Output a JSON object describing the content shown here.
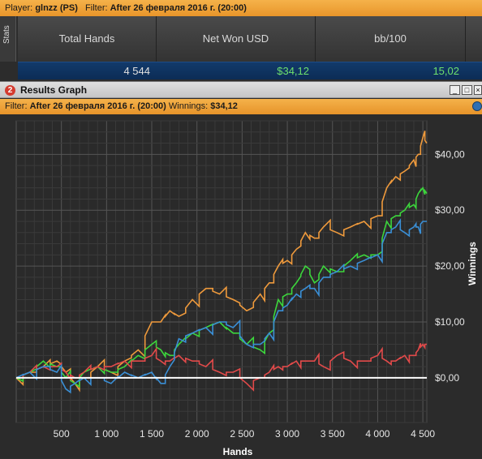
{
  "topbar": {
    "player_label": "Player:",
    "player": "glnzz (PS)",
    "filter_label": "Filter:",
    "filter": "After 26 февраля 2016 г. (20:00)"
  },
  "stats": {
    "tab_label": "Stats",
    "headers": [
      "Total Hands",
      "Net Won USD",
      "bb/100"
    ],
    "values": [
      "4 544",
      "$34,12",
      "15,02"
    ],
    "colors": [
      "#e0e0e0",
      "#6ee06e",
      "#6ee06e"
    ]
  },
  "window": {
    "badge": "2",
    "title": "Results Graph",
    "buttons": [
      "_",
      "□",
      "×"
    ],
    "filter_label": "Filter:",
    "filter_value": "After 26 февраля 2016 г. (20:00)",
    "winnings_label": "Winnings:",
    "winnings_value": "$34,12"
  },
  "chart_data": {
    "type": "line",
    "xlabel": "Hands",
    "ylabel": "Winnings",
    "xlim": [
      0,
      4544
    ],
    "ylim": [
      -8,
      46
    ],
    "x_ticks": [
      500,
      1000,
      1500,
      2000,
      2500,
      3000,
      3500,
      4000,
      4500
    ],
    "x_tick_labels": [
      "500",
      "1 000",
      "1 500",
      "2 000",
      "2 500",
      "3 000",
      "3 500",
      "4 000",
      "4 500"
    ],
    "y_ticks": [
      0,
      10,
      20,
      30,
      40
    ],
    "y_tick_labels": [
      "$0,00",
      "$10,00",
      "$20,00",
      "$30,00",
      "$40,00"
    ],
    "grid": true,
    "series": [
      {
        "color": "#ef9a3c",
        "x": [
          0,
          150,
          300,
          450,
          550,
          650,
          750,
          900,
          1050,
          1200,
          1350,
          1500,
          1600,
          1700,
          1800,
          1950,
          2100,
          2250,
          2400,
          2550,
          2700,
          2800,
          2900,
          3000,
          3100,
          3200,
          3300,
          3400,
          3550,
          3700,
          3850,
          4000,
          4100,
          4200,
          4300,
          4400,
          4450,
          4500,
          4544
        ],
        "y": [
          0,
          1,
          2,
          3,
          1,
          -1,
          0,
          2,
          1,
          3,
          5,
          10,
          10,
          12,
          11,
          14,
          16,
          15,
          14,
          12,
          15,
          17,
          20,
          21,
          23,
          26,
          25,
          27,
          26,
          27,
          28,
          29,
          34,
          36,
          37,
          39,
          40,
          43,
          42
        ]
      },
      {
        "color": "#3cd63c",
        "x": [
          0,
          150,
          300,
          450,
          550,
          650,
          750,
          900,
          1050,
          1200,
          1350,
          1500,
          1600,
          1700,
          1800,
          1950,
          2100,
          2250,
          2400,
          2550,
          2700,
          2800,
          2900,
          3000,
          3100,
          3200,
          3300,
          3400,
          3550,
          3700,
          3850,
          4000,
          4100,
          4200,
          4300,
          4400,
          4450,
          4500,
          4544
        ],
        "y": [
          0,
          1,
          3,
          2,
          0,
          -1,
          1,
          2,
          1,
          2,
          4,
          6,
          5,
          4,
          6,
          8,
          9,
          10,
          8,
          6,
          5,
          8,
          14,
          15,
          17,
          20,
          17,
          20,
          19,
          21,
          22,
          22,
          28,
          29,
          30,
          31,
          33,
          34,
          33
        ]
      },
      {
        "color": "#e24a4a",
        "x": [
          0,
          150,
          300,
          450,
          550,
          650,
          750,
          900,
          1050,
          1200,
          1350,
          1500,
          1600,
          1700,
          1800,
          1950,
          2100,
          2250,
          2400,
          2550,
          2700,
          2800,
          2900,
          3000,
          3100,
          3200,
          3300,
          3400,
          3550,
          3700,
          3850,
          4000,
          4100,
          4200,
          4300,
          4400,
          4450,
          4500,
          4544
        ],
        "y": [
          0,
          1,
          2,
          2,
          1,
          0,
          1,
          2,
          2,
          3,
          3,
          4,
          3,
          3,
          4,
          3,
          2,
          1,
          1,
          -1,
          0,
          1,
          2,
          2,
          3,
          3,
          3,
          2,
          4,
          3,
          3,
          4,
          3,
          3,
          4,
          4,
          5,
          6,
          6
        ]
      },
      {
        "color": "#3a8fd6",
        "x": [
          0,
          150,
          300,
          450,
          550,
          650,
          750,
          900,
          1050,
          1200,
          1350,
          1500,
          1600,
          1700,
          1800,
          1950,
          2100,
          2250,
          2400,
          2550,
          2700,
          2800,
          2900,
          3000,
          3100,
          3200,
          3300,
          3400,
          3550,
          3700,
          3850,
          4000,
          4100,
          4200,
          4300,
          4400,
          4450,
          4500,
          4544
        ],
        "y": [
          0,
          1,
          2,
          1,
          -2,
          -1,
          0,
          0,
          -1,
          1,
          0,
          1,
          -1,
          2,
          7,
          8,
          9,
          10,
          9,
          6,
          6,
          8,
          12,
          13,
          15,
          16,
          16,
          18,
          19,
          20,
          21,
          22,
          26,
          27,
          26,
          27,
          27,
          28,
          28
        ]
      },
      {
        "color": "#ffffff",
        "x": [
          0,
          4544
        ],
        "y": [
          0,
          0
        ]
      }
    ]
  }
}
